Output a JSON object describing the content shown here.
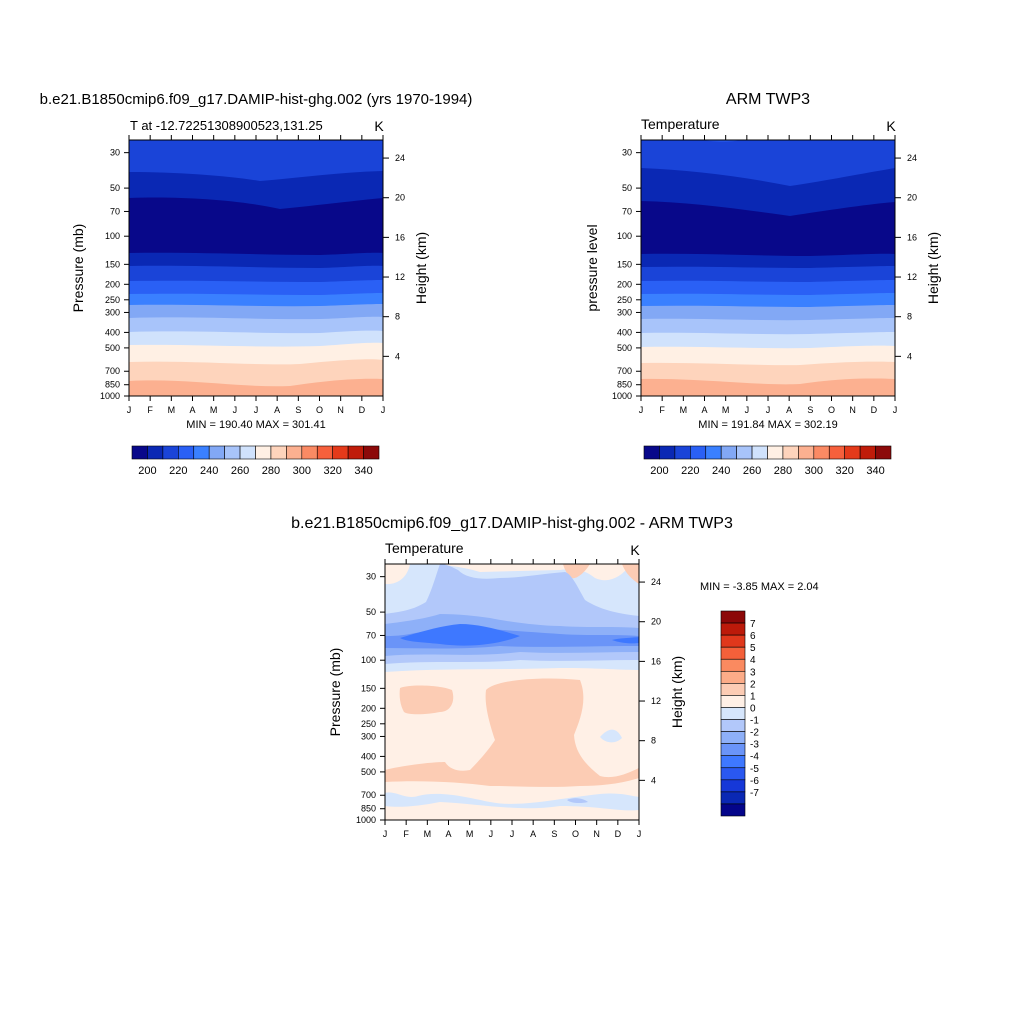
{
  "months": [
    "J",
    "F",
    "M",
    "A",
    "M",
    "J",
    "J",
    "A",
    "S",
    "O",
    "N",
    "D",
    "J"
  ],
  "pressure_ticks": [
    "30",
    "50",
    "70",
    "100",
    "150",
    "200",
    "250",
    "300",
    "400",
    "500",
    "700",
    "850",
    "1000"
  ],
  "height_ticks": [
    "24",
    "20",
    "16",
    "12",
    "8",
    "4"
  ],
  "abs_colors": [
    "#08088a",
    "#0a28b4",
    "#1a44d8",
    "#2a60f5",
    "#3a80ff",
    "#82a8f5",
    "#a8c4fa",
    "#d0e2fc",
    "#fff0e4",
    "#fed4bc",
    "#fcb090",
    "#fa8a64",
    "#f6603c",
    "#e43a1a",
    "#c01c0a",
    "#8c0a0a"
  ],
  "abs_labels": [
    "200",
    "220",
    "240",
    "260",
    "280",
    "300",
    "320",
    "340"
  ],
  "diff_colors": [
    "#04058a",
    "#0a28b4",
    "#1638d8",
    "#2a58f0",
    "#3e78ff",
    "#6a94f8",
    "#8eb0f8",
    "#b2c8fa",
    "#d6e6fc",
    "#fff0e6",
    "#fcccb4",
    "#fcac88",
    "#fa8a60",
    "#f4603a",
    "#e0381c",
    "#bc1a0a",
    "#8c0808"
  ],
  "diff_labels": [
    "7",
    "6",
    "5",
    "4",
    "3",
    "2",
    "1",
    "0",
    "-1",
    "-2",
    "-3",
    "-4",
    "-5",
    "-6",
    "-7"
  ],
  "panels": [
    {
      "title": "b.e21.B1850cmip6.f09_g17.DAMIP-hist-ghg.002 (yrs 1970-1994)",
      "left_label": "T at -12.72251308900523,131.25",
      "units": "K",
      "ylabel": "Pressure (mb)",
      "y2label": "Height (km)",
      "stats": "MIN = 190.40 MAX = 301.41"
    },
    {
      "title": "ARM TWP3",
      "left_label": "Temperature",
      "units": "K",
      "ylabel": "pressure level",
      "y2label": "Height (km)",
      "stats": "MIN = 191.84 MAX = 302.19"
    },
    {
      "title": "b.e21.B1850cmip6.f09_g17.DAMIP-hist-ghg.002 - ARM TWP3",
      "left_label": "Temperature",
      "units": "K",
      "ylabel": "Pressure (mb)",
      "y2label": "Height (km)",
      "stats": "MIN =  -3.85 MAX =   2.04"
    }
  ],
  "chart_data": [
    {
      "type": "heatmap",
      "title": "b.e21.B1850cmip6.f09_g17.DAMIP-hist-ghg.002 (yrs 1970-1994)",
      "xlabel": "",
      "ylabel": "Pressure (mb)",
      "y2label": "Height (km)",
      "x": [
        "J",
        "F",
        "M",
        "A",
        "M",
        "J",
        "J",
        "A",
        "S",
        "O",
        "N",
        "D",
        "J"
      ],
      "y_pressure_mb": [
        30,
        50,
        70,
        100,
        150,
        200,
        250,
        300,
        400,
        500,
        700,
        850,
        1000
      ],
      "y_range_mb": [
        25,
        1000
      ],
      "y_scale": "log",
      "contour_levels_K": [
        200,
        210,
        220,
        230,
        240,
        250,
        260,
        270,
        280,
        290,
        300,
        310,
        320,
        330,
        340
      ],
      "approx_temperature_K": [
        222,
        214,
        200,
        196,
        205,
        219,
        228,
        237,
        248,
        262,
        281,
        290,
        299
      ],
      "min": 190.4,
      "max": 301.41,
      "units": "K"
    },
    {
      "type": "heatmap",
      "title": "ARM TWP3",
      "ylabel": "pressure level",
      "y2label": "Height (km)",
      "x": [
        "J",
        "F",
        "M",
        "A",
        "M",
        "J",
        "J",
        "A",
        "S",
        "O",
        "N",
        "D",
        "J"
      ],
      "y_pressure_mb": [
        30,
        50,
        70,
        100,
        150,
        200,
        250,
        300,
        400,
        500,
        700,
        850,
        1000
      ],
      "y_range_mb": [
        25,
        1000
      ],
      "y_scale": "log",
      "contour_levels_K": [
        200,
        210,
        220,
        230,
        240,
        250,
        260,
        270,
        280,
        290,
        300,
        310,
        320,
        330,
        340
      ],
      "approx_temperature_K": [
        223,
        214,
        199,
        195,
        206,
        220,
        229,
        238,
        249,
        263,
        282,
        291,
        299
      ],
      "min": 191.84,
      "max": 302.19,
      "units": "K"
    },
    {
      "type": "heatmap",
      "title": "b.e21.B1850cmip6.f09_g17.DAMIP-hist-ghg.002 - ARM TWP3",
      "ylabel": "Pressure (mb)",
      "y2label": "Height (km)",
      "x": [
        "J",
        "F",
        "M",
        "A",
        "M",
        "J",
        "J",
        "A",
        "S",
        "O",
        "N",
        "D",
        "J"
      ],
      "y_pressure_mb": [
        30,
        50,
        70,
        100,
        150,
        200,
        250,
        300,
        400,
        500,
        700,
        850,
        1000
      ],
      "y_range_mb": [
        25,
        1000
      ],
      "y_scale": "log",
      "contour_levels_K": [
        -7,
        -6,
        -5,
        -4,
        -3,
        -2,
        -1,
        0,
        1,
        2,
        3,
        4,
        5,
        6,
        7
      ],
      "approx_difference_K": [
        -0.5,
        -1.5,
        -3.5,
        -1.5,
        0.5,
        1.2,
        1.5,
        1.2,
        0.8,
        1.5,
        0.5,
        -0.5,
        0.5
      ],
      "min": -3.85,
      "max": 2.04,
      "units": "K"
    }
  ]
}
